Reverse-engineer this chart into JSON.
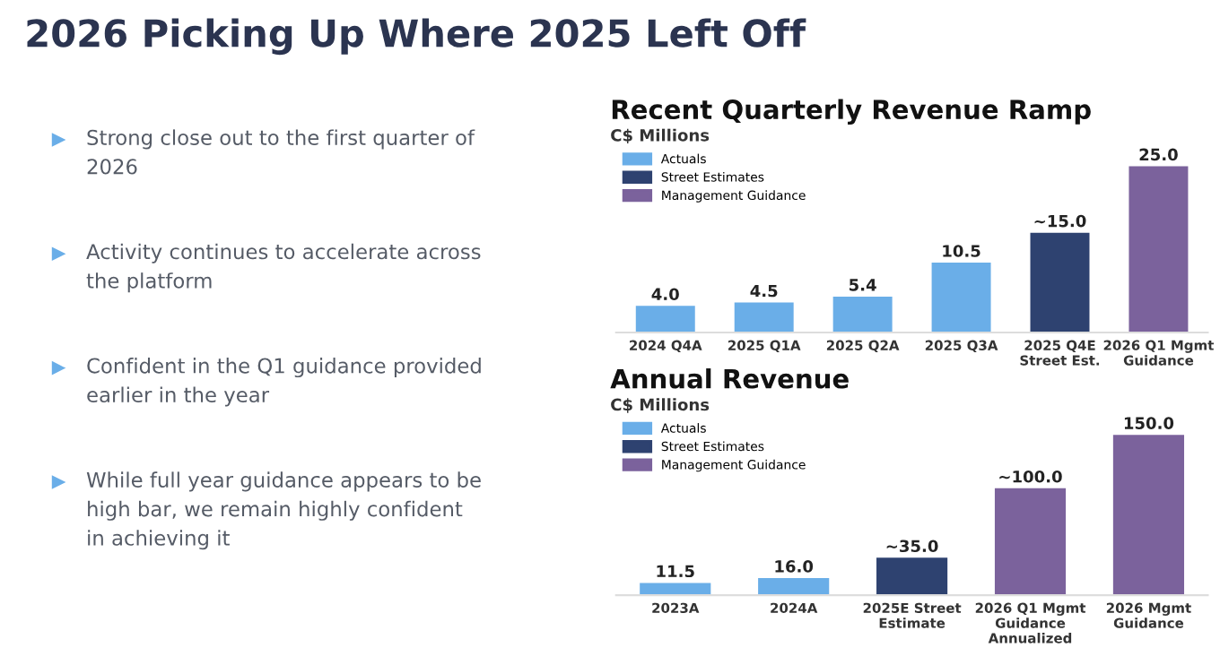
{
  "chart_data": [
    {
      "type": "other",
      "title": "2026 Picking Up Where 2025 Left Off",
      "annotations": [
        "Strong close out to the first quarter of\n2026",
        "Activity continues to accelerate across\nthe platform",
        "Confident in the Q1 guidance provided\nearlier in the year",
        "While full year guidance appears to be\nhigh bar, we remain highly confident\nin achieving it"
      ]
    },
    {
      "type": "bar",
      "title": "Recent Quarterly Revenue Ramp",
      "subtitle": "C$ Millions",
      "legend": "top left",
      "categories": [
        "2024 Q4A",
        "2025 Q1A",
        "2025 Q2A",
        "2025 Q3A",
        "2025 Q4E\nStreet Est.",
        "2026 Q1 Mgmt\nGuidance"
      ],
      "series": [
        {
          "name": "Actuals",
          "color": "#6aaee8",
          "values": [
            4.0,
            4.5,
            5.4,
            10.5,
            null,
            null
          ],
          "value_labels": [
            "4.0",
            "4.5",
            "5.4",
            "10.5",
            null,
            null
          ]
        },
        {
          "name": "Street Estimates",
          "color": "#2e4270",
          "values": [
            null,
            null,
            null,
            null,
            15.0,
            null
          ],
          "value_labels": [
            null,
            null,
            null,
            null,
            "~15.0",
            null
          ]
        },
        {
          "name": "Management Guidance",
          "color": "#7b629c",
          "values": [
            null,
            null,
            null,
            null,
            null,
            25.0
          ],
          "value_labels": [
            null,
            null,
            null,
            null,
            null,
            "25.0"
          ]
        }
      ]
    },
    {
      "type": "bar",
      "title": "Annual Revenue",
      "subtitle": "C$ Millions",
      "legend": "top left",
      "categories": [
        "2023A",
        "2024A",
        "2025E Street\nEstimate",
        "2026 Q1 Mgmt\nGuidance\nAnnualized",
        "2026 Mgmt\nGuidance"
      ],
      "series": [
        {
          "name": "Actuals",
          "color": "#6aaee8",
          "values": [
            11.5,
            16.0,
            null,
            null,
            null
          ],
          "value_labels": [
            "11.5",
            "16.0",
            null,
            null,
            null
          ]
        },
        {
          "name": "Street Estimates",
          "color": "#2e4270",
          "values": [
            null,
            null,
            35.0,
            null,
            null
          ],
          "value_labels": [
            null,
            null,
            "~35.0",
            null,
            null
          ]
        },
        {
          "name": "Management Guidance",
          "color": "#7b629c",
          "values": [
            null,
            null,
            null,
            100.0,
            150.0
          ],
          "value_labels": [
            null,
            null,
            null,
            "~100.0",
            "150.0"
          ]
        }
      ]
    }
  ]
}
